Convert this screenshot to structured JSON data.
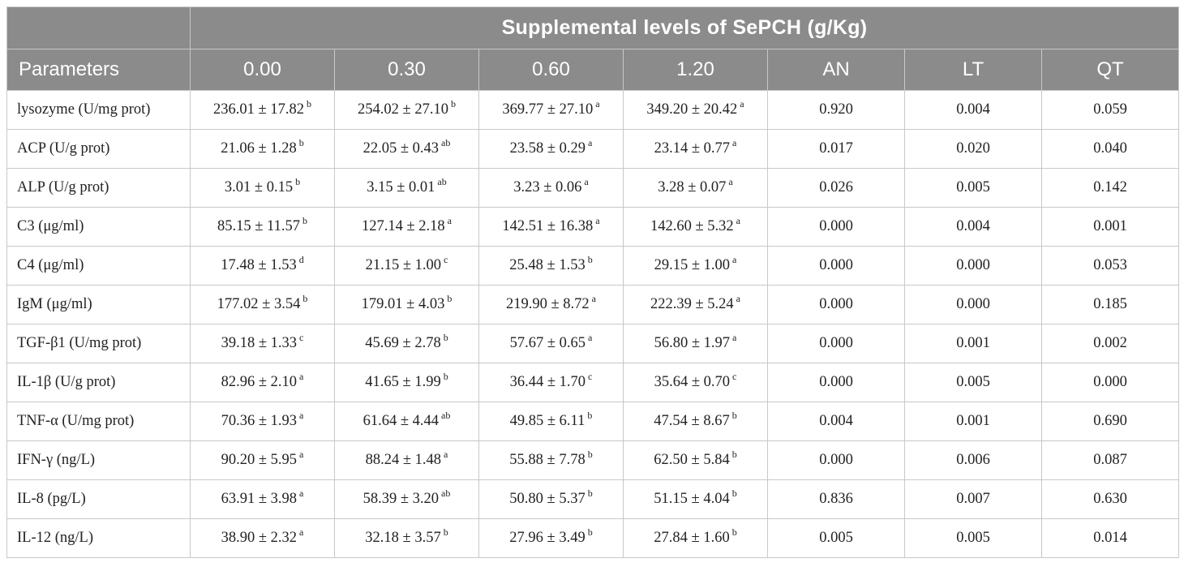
{
  "table": {
    "group_header": "Supplemental levels of SePCH (g/Kg)",
    "columns": [
      "Parameters",
      "0.00",
      "0.30",
      "0.60",
      "1.20",
      "AN",
      "LT",
      "QT"
    ],
    "rows": [
      {
        "param": "lysozyme (U/mg prot)",
        "v": [
          {
            "val": "236.01 ± 17.82",
            "sup": "b"
          },
          {
            "val": "254.02 ± 27.10",
            "sup": "b"
          },
          {
            "val": "369.77 ± 27.10",
            "sup": "a"
          },
          {
            "val": "349.20 ± 20.42",
            "sup": "a"
          }
        ],
        "an": "0.920",
        "lt": "0.004",
        "qt": "0.059"
      },
      {
        "param": "ACP (U/g prot)",
        "v": [
          {
            "val": "21.06 ± 1.28",
            "sup": "b"
          },
          {
            "val": "22.05 ± 0.43",
            "sup": "ab"
          },
          {
            "val": "23.58 ± 0.29",
            "sup": "a"
          },
          {
            "val": "23.14 ± 0.77",
            "sup": "a"
          }
        ],
        "an": "0.017",
        "lt": "0.020",
        "qt": "0.040"
      },
      {
        "param": "ALP (U/g prot)",
        "v": [
          {
            "val": "3.01 ± 0.15",
            "sup": "b"
          },
          {
            "val": "3.15 ± 0.01",
            "sup": "ab"
          },
          {
            "val": "3.23 ± 0.06",
            "sup": "a"
          },
          {
            "val": "3.28 ± 0.07",
            "sup": "a"
          }
        ],
        "an": "0.026",
        "lt": "0.005",
        "qt": "0.142"
      },
      {
        "param": "C3 (μg/ml)",
        "v": [
          {
            "val": "85.15 ± 11.57",
            "sup": "b"
          },
          {
            "val": "127.14 ± 2.18",
            "sup": "a"
          },
          {
            "val": "142.51 ± 16.38",
            "sup": "a"
          },
          {
            "val": "142.60 ± 5.32",
            "sup": "a"
          }
        ],
        "an": "0.000",
        "lt": "0.004",
        "qt": "0.001"
      },
      {
        "param": "C4 (μg/ml)",
        "v": [
          {
            "val": "17.48 ± 1.53",
            "sup": "d"
          },
          {
            "val": "21.15 ± 1.00",
            "sup": "c"
          },
          {
            "val": "25.48 ± 1.53",
            "sup": "b"
          },
          {
            "val": "29.15 ± 1.00",
            "sup": "a"
          }
        ],
        "an": "0.000",
        "lt": "0.000",
        "qt": "0.053"
      },
      {
        "param": "IgM (μg/ml)",
        "v": [
          {
            "val": "177.02 ± 3.54",
            "sup": "b"
          },
          {
            "val": "179.01 ± 4.03",
            "sup": "b"
          },
          {
            "val": "219.90 ± 8.72",
            "sup": "a"
          },
          {
            "val": "222.39 ± 5.24",
            "sup": "a"
          }
        ],
        "an": "0.000",
        "lt": "0.000",
        "qt": "0.185"
      },
      {
        "param": "TGF-β1 (U/mg prot)",
        "v": [
          {
            "val": "39.18 ± 1.33",
            "sup": "c"
          },
          {
            "val": "45.69 ± 2.78",
            "sup": "b"
          },
          {
            "val": "57.67 ± 0.65",
            "sup": "a"
          },
          {
            "val": "56.80 ± 1.97",
            "sup": "a"
          }
        ],
        "an": "0.000",
        "lt": "0.001",
        "qt": "0.002"
      },
      {
        "param": "IL-1β (U/g prot)",
        "v": [
          {
            "val": "82.96 ± 2.10",
            "sup": "a"
          },
          {
            "val": "41.65 ± 1.99",
            "sup": "b"
          },
          {
            "val": "36.44 ± 1.70",
            "sup": "c"
          },
          {
            "val": "35.64 ± 0.70",
            "sup": "c"
          }
        ],
        "an": "0.000",
        "lt": "0.005",
        "qt": "0.000"
      },
      {
        "param": "TNF-α (U/mg prot)",
        "v": [
          {
            "val": "70.36 ± 1.93",
            "sup": "a"
          },
          {
            "val": "61.64 ± 4.44",
            "sup": "ab"
          },
          {
            "val": "49.85 ± 6.11",
            "sup": "b"
          },
          {
            "val": "47.54 ± 8.67",
            "sup": "b"
          }
        ],
        "an": "0.004",
        "lt": "0.001",
        "qt": "0.690"
      },
      {
        "param": "IFN-γ (ng/L)",
        "v": [
          {
            "val": "90.20 ± 5.95",
            "sup": "a"
          },
          {
            "val": "88.24 ± 1.48",
            "sup": "a"
          },
          {
            "val": "55.88 ± 7.78",
            "sup": "b"
          },
          {
            "val": "62.50 ± 5.84",
            "sup": "b"
          }
        ],
        "an": "0.000",
        "lt": "0.006",
        "qt": "0.087"
      },
      {
        "param": "IL-8 (pg/L)",
        "v": [
          {
            "val": "63.91 ± 3.98",
            "sup": "a"
          },
          {
            "val": "58.39 ± 3.20",
            "sup": "ab"
          },
          {
            "val": "50.80 ± 5.37",
            "sup": "b"
          },
          {
            "val": "51.15 ± 4.04",
            "sup": "b"
          }
        ],
        "an": "0.836",
        "lt": "0.007",
        "qt": "0.630"
      },
      {
        "param": "IL-12 (ng/L)",
        "v": [
          {
            "val": "38.90 ± 2.32",
            "sup": "a"
          },
          {
            "val": "32.18 ± 3.57",
            "sup": "b"
          },
          {
            "val": "27.96 ± 3.49",
            "sup": "b"
          },
          {
            "val": "27.84 ± 1.60",
            "sup": "b"
          }
        ],
        "an": "0.005",
        "lt": "0.005",
        "qt": "0.014"
      }
    ]
  }
}
